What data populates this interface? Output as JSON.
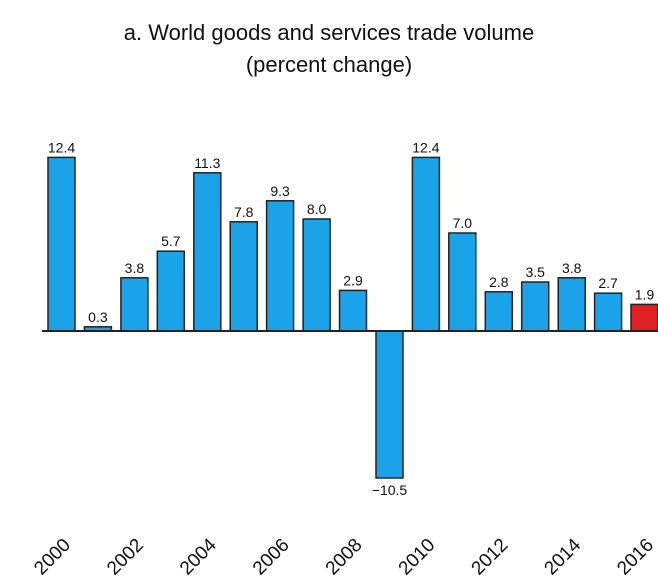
{
  "chart_data": {
    "type": "bar",
    "title": "a. World goods and services trade volume",
    "subtitle": "(percent change)",
    "xlabel": "",
    "ylabel": "",
    "grid": false,
    "legend": "none",
    "ylim": [
      -11,
      13
    ],
    "categories": [
      "2000",
      "2001",
      "2002",
      "2003",
      "2004",
      "2005",
      "2006",
      "2007",
      "2008",
      "2009",
      "2010",
      "2011",
      "2012",
      "2013",
      "2014",
      "2015",
      "2016"
    ],
    "tick_labels": [
      "2000",
      "2002",
      "2004",
      "2006",
      "2008",
      "2010",
      "2012",
      "2014",
      "2016"
    ],
    "values": [
      12.4,
      0.3,
      3.8,
      5.7,
      11.3,
      7.8,
      9.3,
      8.0,
      2.9,
      -10.5,
      12.4,
      7.0,
      2.8,
      3.5,
      3.8,
      2.7,
      1.9
    ],
    "value_labels": [
      "12.4",
      "0.3",
      "3.8",
      "5.7",
      "11.3",
      "7.8",
      "9.3",
      "8.0",
      "2.9",
      "−10.5",
      "12.4",
      "7.0",
      "2.8",
      "3.5",
      "3.8",
      "2.7",
      "1.9"
    ],
    "highlight_index": 16,
    "colors": {
      "bar": "#1aa3e8",
      "highlight": "#e02020",
      "outline": "#222222",
      "axis": "#222222"
    }
  }
}
